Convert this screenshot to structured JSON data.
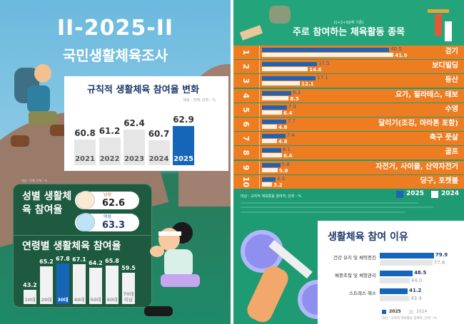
{
  "header": {
    "title_year": "II-2025-II",
    "title": "국민생활체육조사"
  },
  "chart_data": [
    {
      "type": "bar",
      "title": "규칙적 생활체육 참여율 변화",
      "note": "대상 : 전체, 단위 : %",
      "categories": [
        "2021",
        "2022",
        "2023",
        "2024",
        "2025"
      ],
      "values": [
        60.8,
        61.2,
        62.4,
        60.7,
        62.9
      ],
      "highlight": "2025",
      "colors": {
        "highlight": "#1565b8",
        "default": "#e6e6e6"
      }
    },
    {
      "type": "table",
      "title": "성별 생활체육 참여율",
      "note": "대상 : 전체, 단위 : %",
      "categories": [
        "남성",
        "여성"
      ],
      "values": [
        62.6,
        63.3
      ]
    },
    {
      "type": "bar",
      "title": "연령별 생활체육 참여율",
      "categories": [
        "10대",
        "20대",
        "30대",
        "40대",
        "50대",
        "60대",
        "70대 이상"
      ],
      "values": [
        43.2,
        65.2,
        67.8,
        67.1,
        64.2,
        65.8,
        59.5
      ],
      "highlight": "30대"
    },
    {
      "type": "bar",
      "orientation": "horizontal",
      "subtitle": "(1+2+3순위 기준)",
      "title": "주로 참여하는 체육활동 종목",
      "ranks": [
        "1",
        "2",
        "3",
        "4",
        "5",
        "6",
        "7",
        "8",
        "9",
        "10"
      ],
      "categories": [
        "걷기",
        "보디빌딩",
        "등산",
        "요가, 필라테스, 태보",
        "수영",
        "달리기(조깅, 마라톤 포함)",
        "축구 풋살",
        "골프",
        "자전거, 사이클, 산악자전거",
        "당구, 포켓볼"
      ],
      "series": [
        {
          "name": "2025",
          "values": [
            40.5,
            17.5,
            17.1,
            9.3,
            7.9,
            7.7,
            7.4,
            6.1,
            5.8,
            4.3
          ],
          "color": "#1f64b4"
        },
        {
          "name": "2024",
          "values": [
            41.9,
            14.6,
            12.1,
            8.5,
            6.4,
            4.8,
            4.8,
            6.4,
            5.0,
            3.2
          ],
          "color": "#ffffff"
        }
      ],
      "note": "대상 : 규칙적 체육활동 참여자, 단위 : %",
      "legend": "bottom-right"
    },
    {
      "type": "bar",
      "orientation": "horizontal",
      "title": "생활체육 참여 이유",
      "categories": [
        "건강 유지 및 체력증진",
        "체중조절 및 체형관리",
        "스트레스 해소"
      ],
      "series": [
        {
          "name": "2025",
          "values": [
            79.9,
            48.5,
            41.2
          ],
          "color": "#1565b8"
        },
        {
          "name": "2024",
          "values": [
            77.6,
            44.0,
            43.4
          ],
          "color": "#e6e6e6"
        }
      ],
      "note": "대상 : 규칙적 체육활동 참여자, 단위 : %",
      "legend": "bottom"
    }
  ]
}
